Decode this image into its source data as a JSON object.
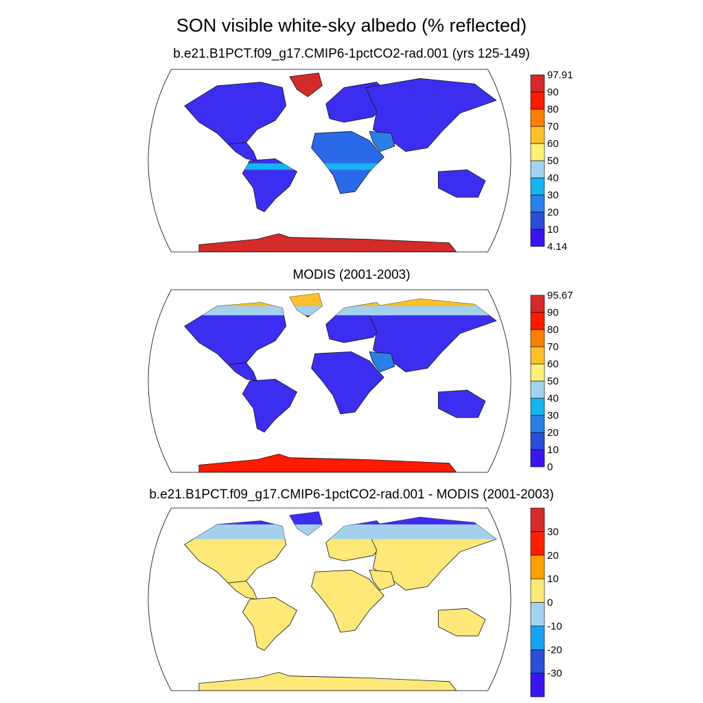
{
  "title": "SON visible white-sky albedo (% reflected)",
  "panels": [
    {
      "subtitle": "b.e21.B1PCT.f09_g17.CMIP6-1pctCO2-rad.001 (yrs 125-149)",
      "colorbar": {
        "labels": [
          "4.14",
          "10",
          "20",
          "30",
          "40",
          "50",
          "60",
          "70",
          "80",
          "90",
          "97.91"
        ],
        "colors": [
          "#3c14f0",
          "#2a4fd8",
          "#2a80e8",
          "#16b4ef",
          "#a4d2ee",
          "#fff078",
          "#fbc02a",
          "#ff8000",
          "#ff1a00",
          "#d42a2a"
        ]
      }
    },
    {
      "subtitle": "MODIS (2001-2003)",
      "colorbar": {
        "labels": [
          "0",
          "10",
          "20",
          "30",
          "40",
          "50",
          "60",
          "70",
          "80",
          "90",
          "95.67"
        ],
        "colors": [
          "#3c14f0",
          "#2a4fd8",
          "#2a80e8",
          "#16b4ef",
          "#a4d2ee",
          "#fff078",
          "#fbc02a",
          "#ff8000",
          "#ff1a00",
          "#d42a2a"
        ]
      }
    },
    {
      "subtitle": "b.e21.B1PCT.f09_g17.CMIP6-1pctCO2-rad.001 - MODIS (2001-2003)",
      "colorbar": {
        "labels": [
          "",
          "-30",
          "-20",
          "-10",
          "0",
          "10",
          "20",
          "30",
          ""
        ],
        "colors": [
          "#3c14f0",
          "#2a4fd8",
          "#16a4ef",
          "#a4d2ee",
          "#fde878",
          "#fba000",
          "#ff2000",
          "#d42a2a"
        ]
      }
    }
  ]
}
